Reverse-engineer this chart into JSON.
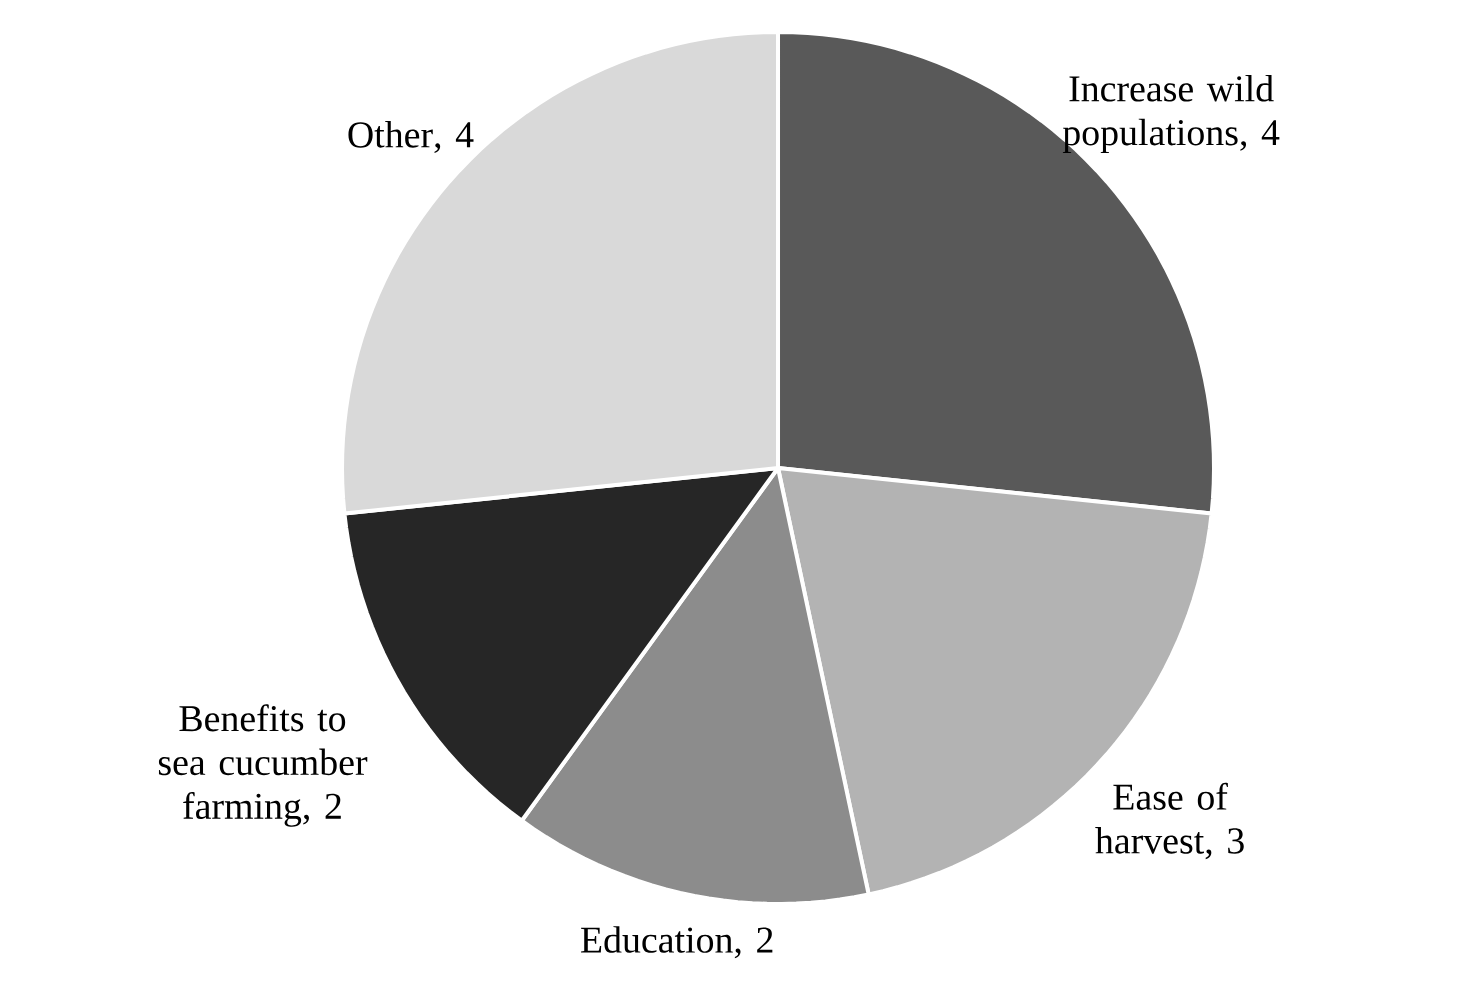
{
  "chart_data": {
    "type": "pie",
    "categories": [
      "Increase wild populations",
      "Ease of harvest",
      "Education",
      "Benefits to sea cucumber farming",
      "Other"
    ],
    "values": [
      4,
      3,
      2,
      2,
      4
    ],
    "colors": [
      "#595959",
      "#b3b3b3",
      "#8c8c8c",
      "#262626",
      "#d9d9d9"
    ],
    "value_labels": [
      ", 4",
      ", 3",
      ", 2",
      ", 2",
      ", 4"
    ]
  }
}
